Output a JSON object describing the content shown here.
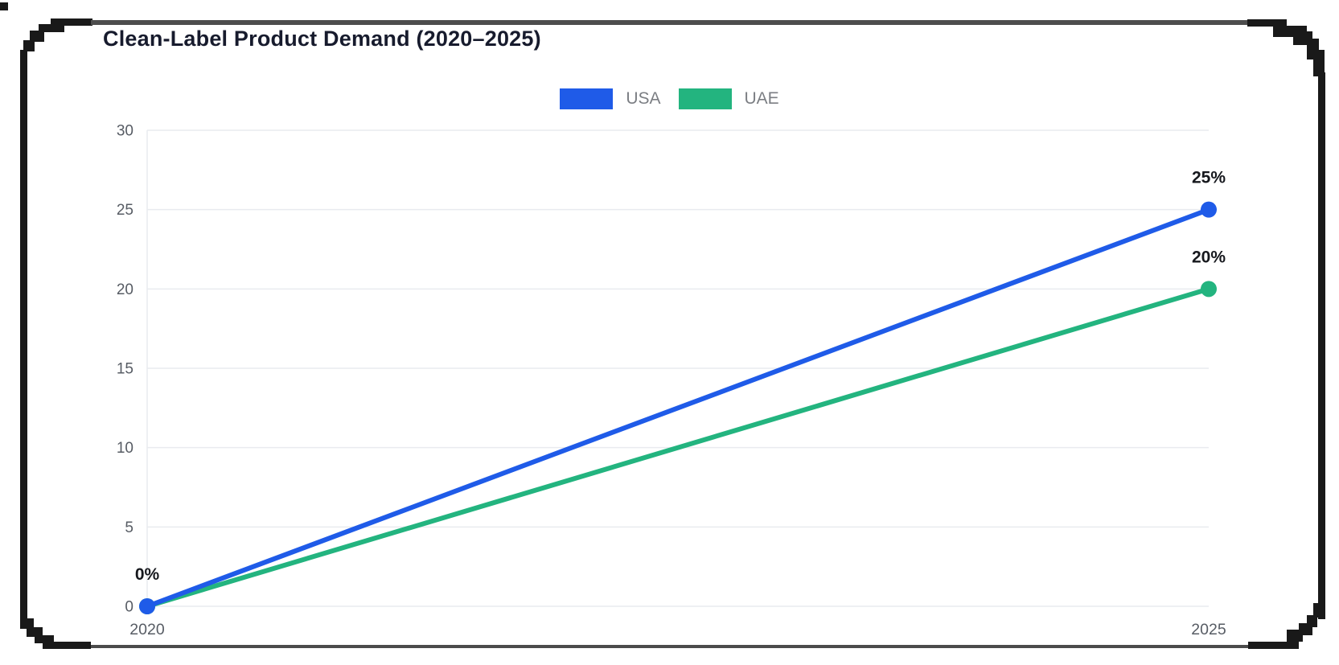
{
  "frame": {
    "border_color": "#191919",
    "top_bar_color": "#4d4d4d",
    "bottom_bar_color": "#4b4b4b"
  },
  "chart_data": {
    "type": "line",
    "title": "Clean-Label Product Demand (2020–2025)",
    "title_color": "#171b2d",
    "categories": [
      "2020",
      "2025"
    ],
    "series": [
      {
        "name": "USA",
        "color": "#1f5be8",
        "values": [
          0,
          25
        ],
        "point_labels": [
          "0%",
          "25%"
        ]
      },
      {
        "name": "UAE",
        "color": "#23b47f",
        "values": [
          0,
          20
        ],
        "point_labels": [
          null,
          "20%"
        ]
      }
    ],
    "ylim": [
      0,
      30
    ],
    "yticks": [
      0,
      5,
      10,
      15,
      20,
      25,
      30
    ],
    "grid": true,
    "legend_position": "top",
    "xlabel": "",
    "ylabel": "",
    "axis_text_color": "#575c64",
    "grid_color": "#e9ebef",
    "point_label_color": "#16181d",
    "legend_text_color": "#7b7e83"
  }
}
